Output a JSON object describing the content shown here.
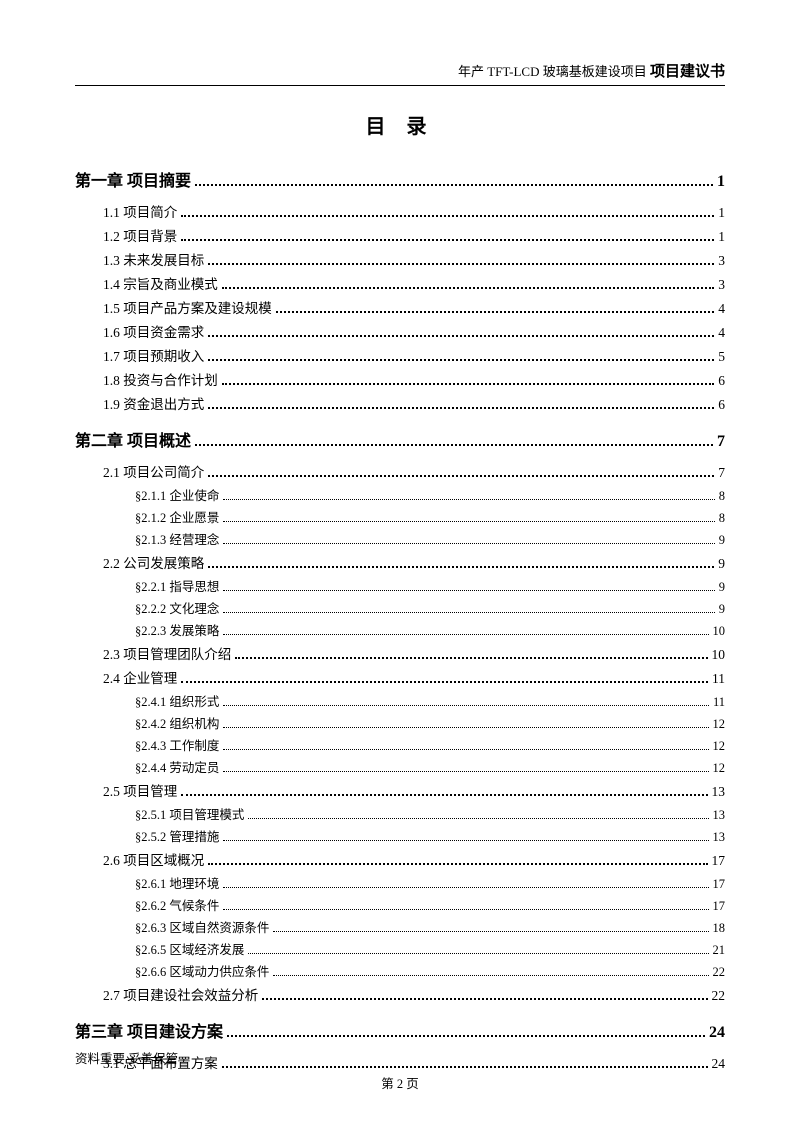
{
  "header": {
    "prefix": "年产 TFT-LCD 玻璃基板建设项目",
    "suffix": "项目建议书"
  },
  "title": "目 录",
  "toc": [
    {
      "type": "chapter",
      "label": "第一章 项目摘要",
      "page": "1"
    },
    {
      "type": "section",
      "label": "1.1 项目简介",
      "page": "1"
    },
    {
      "type": "section",
      "label": "1.2 项目背景",
      "page": "1"
    },
    {
      "type": "section",
      "label": "1.3 未来发展目标",
      "page": "3"
    },
    {
      "type": "section",
      "label": "1.4 宗旨及商业模式",
      "page": "3"
    },
    {
      "type": "section",
      "label": "1.5 项目产品方案及建设规模",
      "page": "4"
    },
    {
      "type": "section",
      "label": "1.6 项目资金需求",
      "page": "4"
    },
    {
      "type": "section",
      "label": "1.7 项目预期收入",
      "page": "5"
    },
    {
      "type": "section",
      "label": "1.8 投资与合作计划",
      "page": "6"
    },
    {
      "type": "section",
      "label": "1.9 资金退出方式",
      "page": "6"
    },
    {
      "type": "chapter",
      "label": "第二章 项目概述",
      "page": "7"
    },
    {
      "type": "section",
      "label": "2.1 项目公司简介",
      "page": "7"
    },
    {
      "type": "subsection",
      "label": "§2.1.1 企业使命",
      "page": "8"
    },
    {
      "type": "subsection",
      "label": "§2.1.2 企业愿景",
      "page": "8"
    },
    {
      "type": "subsection",
      "label": "§2.1.3 经营理念",
      "page": "9"
    },
    {
      "type": "section",
      "label": "2.2 公司发展策略",
      "page": "9"
    },
    {
      "type": "subsection",
      "label": "§2.2.1 指导思想",
      "page": "9"
    },
    {
      "type": "subsection",
      "label": "§2.2.2 文化理念",
      "page": "9"
    },
    {
      "type": "subsection",
      "label": "§2.2.3 发展策略",
      "page": "10"
    },
    {
      "type": "section",
      "label": "2.3 项目管理团队介绍",
      "page": "10"
    },
    {
      "type": "section",
      "label": "2.4 企业管理",
      "page": "11"
    },
    {
      "type": "subsection",
      "label": "§2.4.1 组织形式",
      "page": "11"
    },
    {
      "type": "subsection",
      "label": "§2.4.2 组织机构",
      "page": "12"
    },
    {
      "type": "subsection",
      "label": "§2.4.3 工作制度",
      "page": "12"
    },
    {
      "type": "subsection",
      "label": "§2.4.4 劳动定员",
      "page": "12"
    },
    {
      "type": "section",
      "label": "2.5 项目管理",
      "page": "13"
    },
    {
      "type": "subsection",
      "label": "§2.5.1 项目管理模式",
      "page": "13"
    },
    {
      "type": "subsection",
      "label": "§2.5.2 管理措施",
      "page": "13"
    },
    {
      "type": "section",
      "label": "2.6 项目区域概况",
      "page": "17"
    },
    {
      "type": "subsection",
      "label": "§2.6.1 地理环境",
      "page": "17"
    },
    {
      "type": "subsection",
      "label": "§2.6.2 气候条件",
      "page": "17"
    },
    {
      "type": "subsection",
      "label": "§2.6.3 区域自然资源条件",
      "page": "18"
    },
    {
      "type": "subsection",
      "label": "§2.6.5 区域经济发展",
      "page": "21"
    },
    {
      "type": "subsection",
      "label": "§2.6.6 区域动力供应条件",
      "page": "22"
    },
    {
      "type": "section",
      "label": "2.7 项目建设社会效益分析",
      "page": "22"
    },
    {
      "type": "chapter",
      "label": "第三章 项目建设方案",
      "page": "24"
    },
    {
      "type": "section",
      "label": "3.1 总平面布置方案",
      "page": "24"
    }
  ],
  "footer": {
    "note": "资料重要  妥善保管",
    "page": "第 2 页"
  }
}
